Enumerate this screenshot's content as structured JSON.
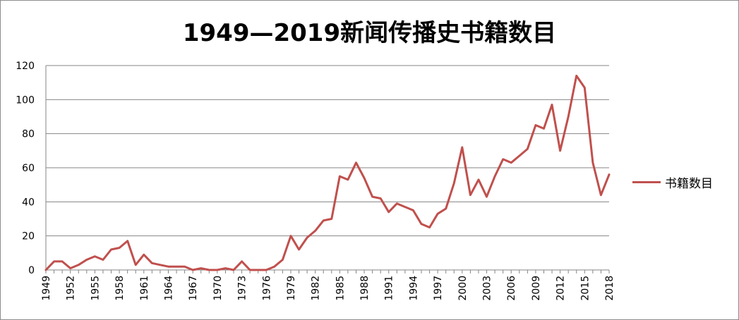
{
  "chart_data": {
    "type": "line",
    "title": "1949—2019新闻传播史书籍数目",
    "xlabel": "",
    "ylabel": "",
    "ylim": [
      0,
      120
    ],
    "yticks": [
      0,
      20,
      40,
      60,
      80,
      100,
      120
    ],
    "xticks": [
      "1949",
      "1952",
      "1955",
      "1958",
      "1961",
      "1964",
      "1967",
      "1970",
      "1973",
      "1976",
      "1979",
      "1982",
      "1985",
      "1988",
      "1991",
      "1994",
      "1997",
      "2000",
      "2003",
      "2006",
      "2009",
      "2012",
      "2015",
      "2018"
    ],
    "grid": true,
    "legend_position": "right",
    "series": [
      {
        "name": "书籍数目",
        "color": "#c0504d",
        "x": [
          1949,
          1950,
          1951,
          1952,
          1953,
          1954,
          1955,
          1956,
          1957,
          1958,
          1959,
          1960,
          1961,
          1962,
          1963,
          1964,
          1965,
          1966,
          1967,
          1968,
          1969,
          1970,
          1971,
          1972,
          1973,
          1974,
          1975,
          1976,
          1977,
          1978,
          1979,
          1980,
          1981,
          1982,
          1983,
          1984,
          1985,
          1986,
          1987,
          1988,
          1989,
          1990,
          1991,
          1992,
          1993,
          1994,
          1995,
          1996,
          1997,
          1998,
          1999,
          2000,
          2001,
          2002,
          2003,
          2004,
          2005,
          2006,
          2007,
          2008,
          2009,
          2010,
          2011,
          2012,
          2013,
          2014,
          2015,
          2016,
          2017,
          2018
        ],
        "values": [
          0,
          5,
          5,
          1,
          3,
          6,
          8,
          6,
          12,
          13,
          17,
          3,
          9,
          4,
          3,
          2,
          2,
          2,
          0,
          1,
          0,
          0,
          1,
          0,
          5,
          0,
          0,
          0,
          2,
          6,
          20,
          12,
          19,
          23,
          29,
          30,
          55,
          53,
          63,
          54,
          43,
          42,
          34,
          39,
          37,
          35,
          27,
          25,
          33,
          36,
          51,
          72,
          44,
          53,
          43,
          55,
          65,
          63,
          67,
          71,
          85,
          83,
          97,
          70,
          90,
          114,
          107,
          63,
          44,
          56
        ]
      }
    ]
  }
}
